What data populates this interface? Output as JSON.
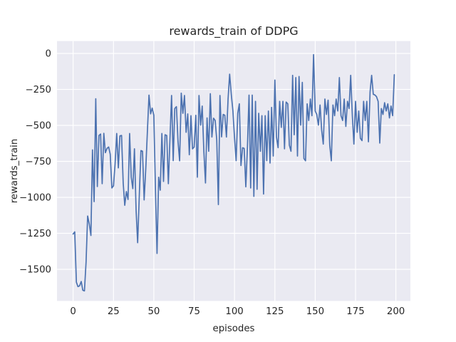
{
  "chart_data": {
    "type": "line",
    "title": "rewards_train of DDPG",
    "xlabel": "episodes",
    "ylabel": "rewards_train",
    "grid": true,
    "legend": "none",
    "x_is_index": true,
    "x_index_meaning": "episode number 0-199",
    "xlim": [
      -10,
      209
    ],
    "ylim": [
      -1720,
      86
    ],
    "x_tick_values": [
      0,
      25,
      50,
      75,
      100,
      125,
      150,
      175,
      200
    ],
    "x_tick_labels": [
      "0",
      "25",
      "50",
      "75",
      "100",
      "125",
      "150",
      "175",
      "200"
    ],
    "y_tick_values": [
      0,
      -250,
      -500,
      -750,
      -1000,
      -1250,
      -1500
    ],
    "y_tick_labels": [
      "0",
      "−250",
      "−500",
      "−750",
      "−1000",
      "−1250",
      "−1500"
    ],
    "colors": {
      "line": "#4c72b0",
      "plot_background": "#eaeaf2",
      "gridline": "#ffffff",
      "text": "#262626",
      "figure_background": "#ffffff"
    },
    "series": [
      {
        "name": "rewards_train",
        "color": "#4c72b0",
        "values": [
          -1255,
          -1240,
          -1590,
          -1620,
          -1615,
          -1585,
          -1645,
          -1650,
          -1450,
          -1130,
          -1185,
          -1265,
          -670,
          -1030,
          -315,
          -925,
          -570,
          -560,
          -905,
          -555,
          -690,
          -660,
          -650,
          -700,
          -935,
          -920,
          -770,
          -556,
          -795,
          -573,
          -570,
          -900,
          -1055,
          -960,
          -1015,
          -556,
          -860,
          -940,
          -663,
          -1090,
          -1315,
          -990,
          -675,
          -680,
          -1018,
          -800,
          -550,
          -290,
          -420,
          -380,
          -430,
          -950,
          -1390,
          -860,
          -950,
          -556,
          -890,
          -565,
          -570,
          -905,
          -600,
          -292,
          -745,
          -383,
          -370,
          -614,
          -746,
          -276,
          -416,
          -292,
          -548,
          -420,
          -704,
          -433,
          -663,
          -650,
          -430,
          -860,
          -292,
          -498,
          -366,
          -680,
          -900,
          -448,
          -680,
          -280,
          -581,
          -450,
          -466,
          -600,
          -1050,
          -292,
          -580,
          -424,
          -430,
          -581,
          -317,
          -144,
          -284,
          -400,
          -581,
          -745,
          -416,
          -350,
          -779,
          -655,
          -660,
          -927,
          -647,
          -290,
          -935,
          -290,
          -993,
          -333,
          -944,
          -416,
          -680,
          -433,
          -977,
          -433,
          -745,
          -400,
          -762,
          -375,
          -713,
          -185,
          -581,
          -655,
          -333,
          -514,
          -333,
          -663,
          -338,
          -350,
          -638,
          -680,
          -152,
          -565,
          -168,
          -713,
          -160,
          -498,
          -201,
          -730,
          -746,
          -350,
          -466,
          -317,
          -433,
          -8,
          -400,
          -424,
          -498,
          -358,
          -531,
          -630,
          -317,
          -424,
          -325,
          -638,
          -746,
          -358,
          -433,
          -317,
          -400,
          -168,
          -433,
          -466,
          -317,
          -507,
          -333,
          -383,
          -152,
          -433,
          -630,
          -333,
          -548,
          -400,
          -590,
          -606,
          -333,
          -466,
          -333,
          -614,
          -267,
          -152,
          -284,
          -289,
          -300,
          -333,
          -623,
          -383,
          -424,
          -342,
          -400,
          -350,
          -448,
          -366,
          -433,
          -148
        ]
      }
    ]
  }
}
